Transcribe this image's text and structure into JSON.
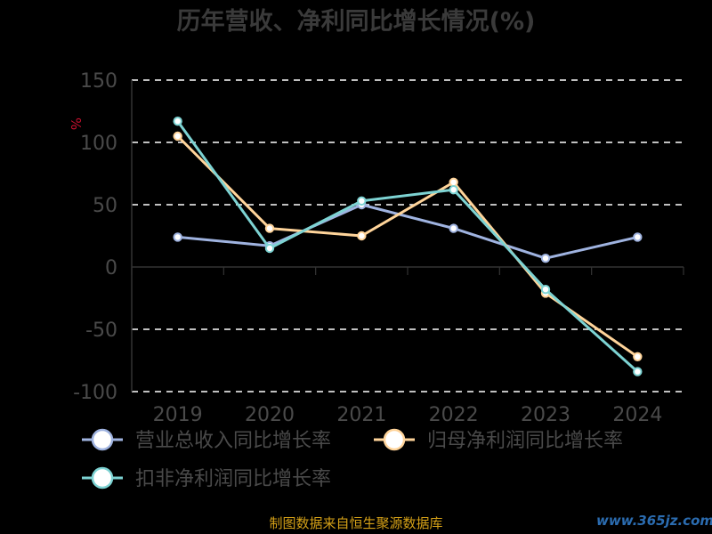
{
  "chart_data": {
    "type": "line",
    "title": "历年营收、净利同比增长情况(%)",
    "unit_label": "%",
    "categories": [
      "2019",
      "2020",
      "2021",
      "2022",
      "2023",
      "2024"
    ],
    "ylim": [
      -100,
      150
    ],
    "yticks": [
      150,
      100,
      50,
      0,
      -50,
      -100
    ],
    "grid": true,
    "legend_position": "bottom-left",
    "series": [
      {
        "name": "营业总收入同比增长率",
        "color": "#9fb3e0",
        "values": [
          24,
          17,
          50,
          31,
          7,
          24
        ]
      },
      {
        "name": "归母净利润同比增长率",
        "color": "#ffd49a",
        "values": [
          105,
          31,
          25,
          68,
          -21,
          -72
        ]
      },
      {
        "name": "扣非净利润同比增长率",
        "color": "#7dd3d3",
        "values": [
          117,
          15,
          53,
          62,
          -18,
          -84
        ]
      }
    ]
  },
  "footer": {
    "source": "制图数据来自恒生聚源数据库",
    "brand": "www.365jz.com"
  }
}
